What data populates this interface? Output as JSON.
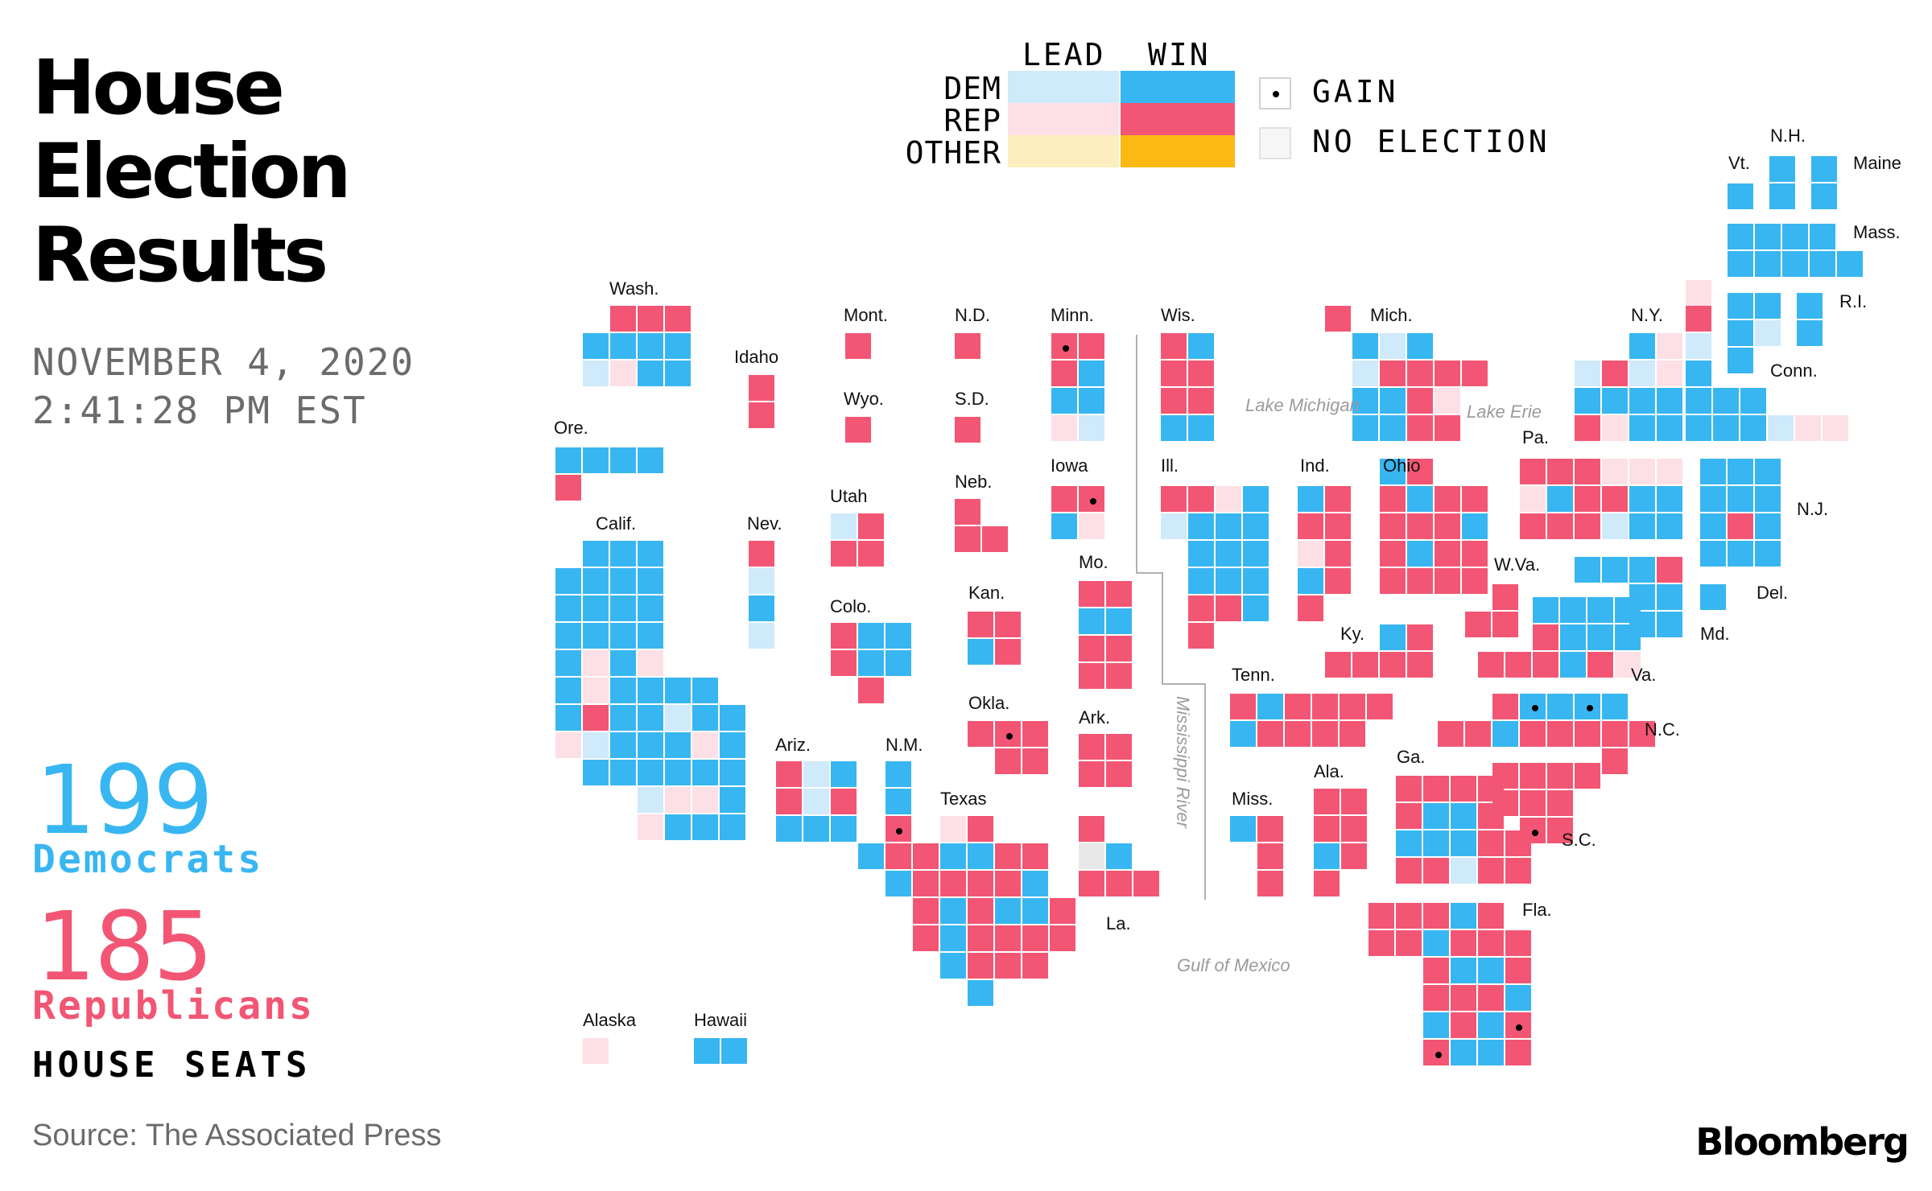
{
  "header": {
    "title_lines": [
      "House",
      "Election",
      "Results"
    ],
    "date": "NOVEMBER 4, 2020",
    "time": "2:41:28 PM EST"
  },
  "totals": {
    "dem_count": "199",
    "dem_label": "Democrats",
    "rep_count": "185",
    "rep_label": "Republicans",
    "seats_label": "HOUSE SEATS"
  },
  "legend": {
    "lead_label": "LEAD",
    "win_label": "WIN",
    "rows": [
      "DEM",
      "REP",
      "OTHER"
    ],
    "gain_label": "GAIN",
    "no_election_label": "NO ELECTION"
  },
  "colors": {
    "dem_win": "#38b6f1",
    "dem_lead": "#cfeafb",
    "rep_win": "#f25674",
    "rep_lead": "#fde0e6",
    "other_win": "#fcb913",
    "other_lead": "#fdeec0",
    "no_election": "#e8e8e8"
  },
  "footer": {
    "source": "Source: The Associated Press",
    "brand": "Bloomberg"
  },
  "map": {
    "state_labels": [
      "Wash.",
      "Ore.",
      "Calif.",
      "Idaho",
      "Nev.",
      "Mont.",
      "Wyo.",
      "Utah",
      "Colo.",
      "Ariz.",
      "N.M.",
      "N.D.",
      "S.D.",
      "Neb.",
      "Kan.",
      "Okla.",
      "Texas",
      "Minn.",
      "Iowa",
      "Mo.",
      "Ark.",
      "La.",
      "Wis.",
      "Ill.",
      "Mich.",
      "Ind.",
      "Ohio",
      "Ky.",
      "Tenn.",
      "Miss.",
      "Ala.",
      "Ga.",
      "Fla.",
      "S.C.",
      "N.C.",
      "Va.",
      "W.Va.",
      "Pa.",
      "N.Y.",
      "N.J.",
      "Del.",
      "Md.",
      "Vt.",
      "N.H.",
      "Maine",
      "Mass.",
      "R.I.",
      "Conn.",
      "Alaska",
      "Hawaii"
    ],
    "geo_labels": [
      "Lake Michigan",
      "Lake Erie",
      "Mississippi River",
      "Gulf of Mexico"
    ]
  }
}
